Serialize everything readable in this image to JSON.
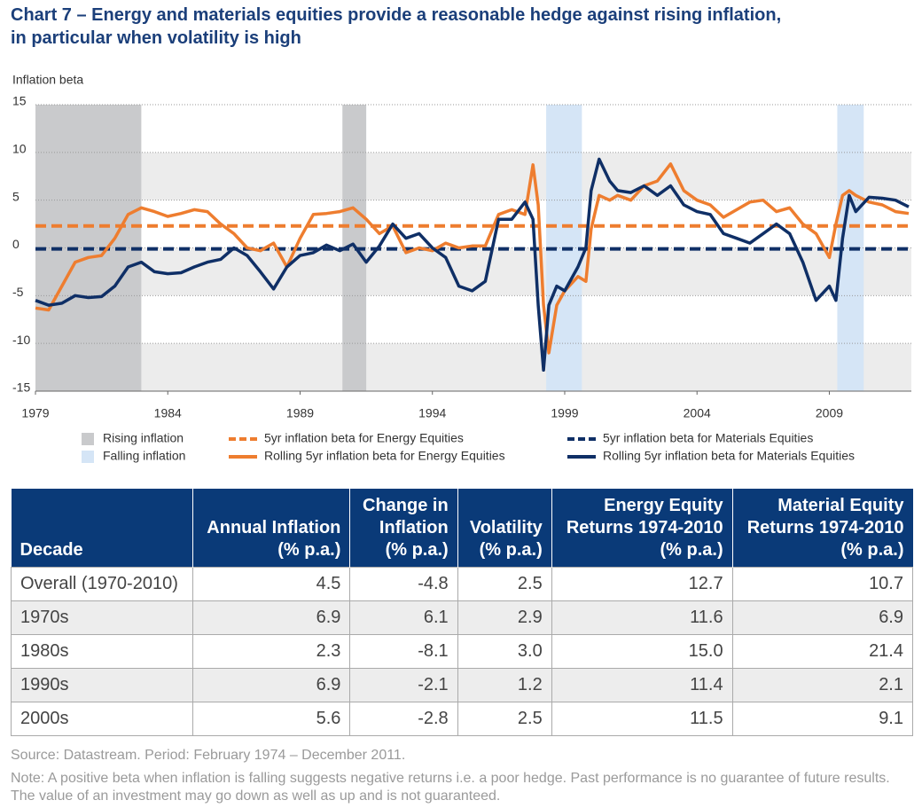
{
  "chart_data": {
    "type": "line",
    "title": [
      "Chart 7 – Energy and materials equities provide a reasonable hedge against rising inflation,",
      "in particular when volatility is high"
    ],
    "y_label": "Inflation beta",
    "xlim": [
      1979,
      2012.1
    ],
    "xticks": [
      1979,
      1984,
      1989,
      1994,
      1999,
      2004,
      2009
    ],
    "ylim": [
      -15,
      15
    ],
    "yticks": [
      -15,
      -10,
      -5,
      0,
      5,
      10,
      15
    ],
    "grid": true,
    "shaded_regions": [
      {
        "name": "Rising inflation",
        "color": "#c9cacc",
        "ranges": [
          [
            1979,
            1983
          ],
          [
            1990.6,
            1991.5
          ]
        ]
      },
      {
        "name": "Falling inflation",
        "color": "#d5e5f6",
        "ranges": [
          [
            1998.3,
            1999.65
          ],
          [
            2009.3,
            2010.3
          ]
        ]
      }
    ],
    "reference_lines": [
      {
        "name": "5yr inflation beta for Energy Equities",
        "color": "#ee7d2f",
        "value": 2.3
      },
      {
        "name": "5yr inflation beta for Materials Equities",
        "color": "#0f2f66",
        "value": -0.1
      }
    ],
    "x": [
      1979,
      1979.5,
      1980,
      1980.5,
      1981,
      1981.5,
      1982,
      1982.5,
      1983,
      1983.5,
      1984,
      1984.5,
      1985,
      1985.5,
      1986,
      1986.5,
      1987,
      1987.5,
      1988,
      1988.5,
      1989,
      1989.5,
      1990,
      1990.5,
      1991,
      1991.5,
      1992,
      1992.5,
      1993,
      1993.5,
      1994,
      1994.5,
      1995,
      1995.5,
      1996,
      1996.5,
      1997,
      1997.5,
      1997.8,
      1998,
      1998.2,
      1998.4,
      1998.7,
      1999,
      1999.5,
      1999.8,
      2000,
      2000.3,
      2000.7,
      2001,
      2001.5,
      2002,
      2002.5,
      2003,
      2003.5,
      2004,
      2004.5,
      2005,
      2005.5,
      2006,
      2006.5,
      2007,
      2007.5,
      2008,
      2008.5,
      2009,
      2009.25,
      2009.5,
      2009.75,
      2010,
      2010.5,
      2011,
      2011.5,
      2012
    ],
    "series": [
      {
        "name": "Rolling 5yr inflation beta for Energy Equities",
        "color": "#ee7d2f",
        "values": [
          -6.3,
          -6.5,
          -4,
          -1.5,
          -1,
          -0.8,
          1,
          3.5,
          4.2,
          3.8,
          3.3,
          3.6,
          4,
          3.8,
          2.5,
          1.5,
          0,
          -0.3,
          0.5,
          -2,
          1,
          3.5,
          3.6,
          3.8,
          4.2,
          3,
          1.5,
          2.3,
          -0.5,
          0,
          -0.3,
          0.5,
          0,
          0.2,
          0.2,
          3.5,
          4,
          3.5,
          8.7,
          4.5,
          -6,
          -11,
          -6,
          -4.5,
          -3,
          -3.5,
          2,
          5.5,
          5,
          5.5,
          5,
          6.5,
          7,
          8.8,
          6,
          5,
          4.5,
          3.2,
          4,
          4.8,
          5,
          3.8,
          4.2,
          2.5,
          1.5,
          -1,
          2.5,
          5.5,
          6,
          5.5,
          4.8,
          4.5,
          3.8,
          3.6
        ]
      },
      {
        "name": "Rolling 5yr inflation beta for Materials Equities",
        "color": "#0f2f66",
        "values": [
          -5.5,
          -6,
          -5.8,
          -5,
          -5.2,
          -5.1,
          -4,
          -2,
          -1.5,
          -2.5,
          -2.7,
          -2.6,
          -2,
          -1.5,
          -1.2,
          0,
          -0.8,
          -2.5,
          -4.3,
          -2,
          -0.8,
          -0.5,
          0.3,
          -0.3,
          0.4,
          -1.5,
          0.2,
          2.5,
          1,
          1.5,
          0,
          -1,
          -4,
          -4.5,
          -3.5,
          3,
          3,
          4.8,
          3,
          -6,
          -12.8,
          -6,
          -4,
          -4.5,
          -2,
          0,
          6,
          9.3,
          7,
          6,
          5.8,
          6.5,
          5.5,
          6.5,
          4.5,
          3.8,
          3.5,
          1.5,
          1,
          0.5,
          1.5,
          2.5,
          1.5,
          -1.5,
          -5.5,
          -4,
          -5.5,
          1,
          5.5,
          3.8,
          5.3,
          5.2,
          5,
          4.3
        ]
      }
    ]
  },
  "table": {
    "header": [
      "Decade",
      "Annual Inflation\n(% p.a.)",
      "Change in\nInflation\n(% p.a.)",
      "Volatility\n(% p.a.)",
      "Energy Equity\nReturns 1974-2010\n(% p.a.)",
      "Material Equity\nReturns 1974-2010\n(% p.a.)"
    ],
    "rows": [
      [
        "Overall (1970-2010)",
        "4.5",
        "-4.8",
        "2.5",
        "12.7",
        "10.7"
      ],
      [
        "1970s",
        "6.9",
        "6.1",
        "2.9",
        "11.6",
        "6.9"
      ],
      [
        "1980s",
        "2.3",
        "-8.1",
        "3.0",
        "15.0",
        "21.4"
      ],
      [
        "1990s",
        "6.9",
        "-2.1",
        "1.2",
        "11.4",
        "2.1"
      ],
      [
        "2000s",
        "5.6",
        "-2.8",
        "2.5",
        "11.5",
        "9.1"
      ]
    ]
  },
  "source": "Source: Datastream. Period: February 1974 – December 2011.",
  "note": "Note: A positive beta when inflation is falling suggests negative returns i.e. a poor hedge. Past performance is no guarantee of future results. The value of an investment may go down as well as up and is not guaranteed."
}
